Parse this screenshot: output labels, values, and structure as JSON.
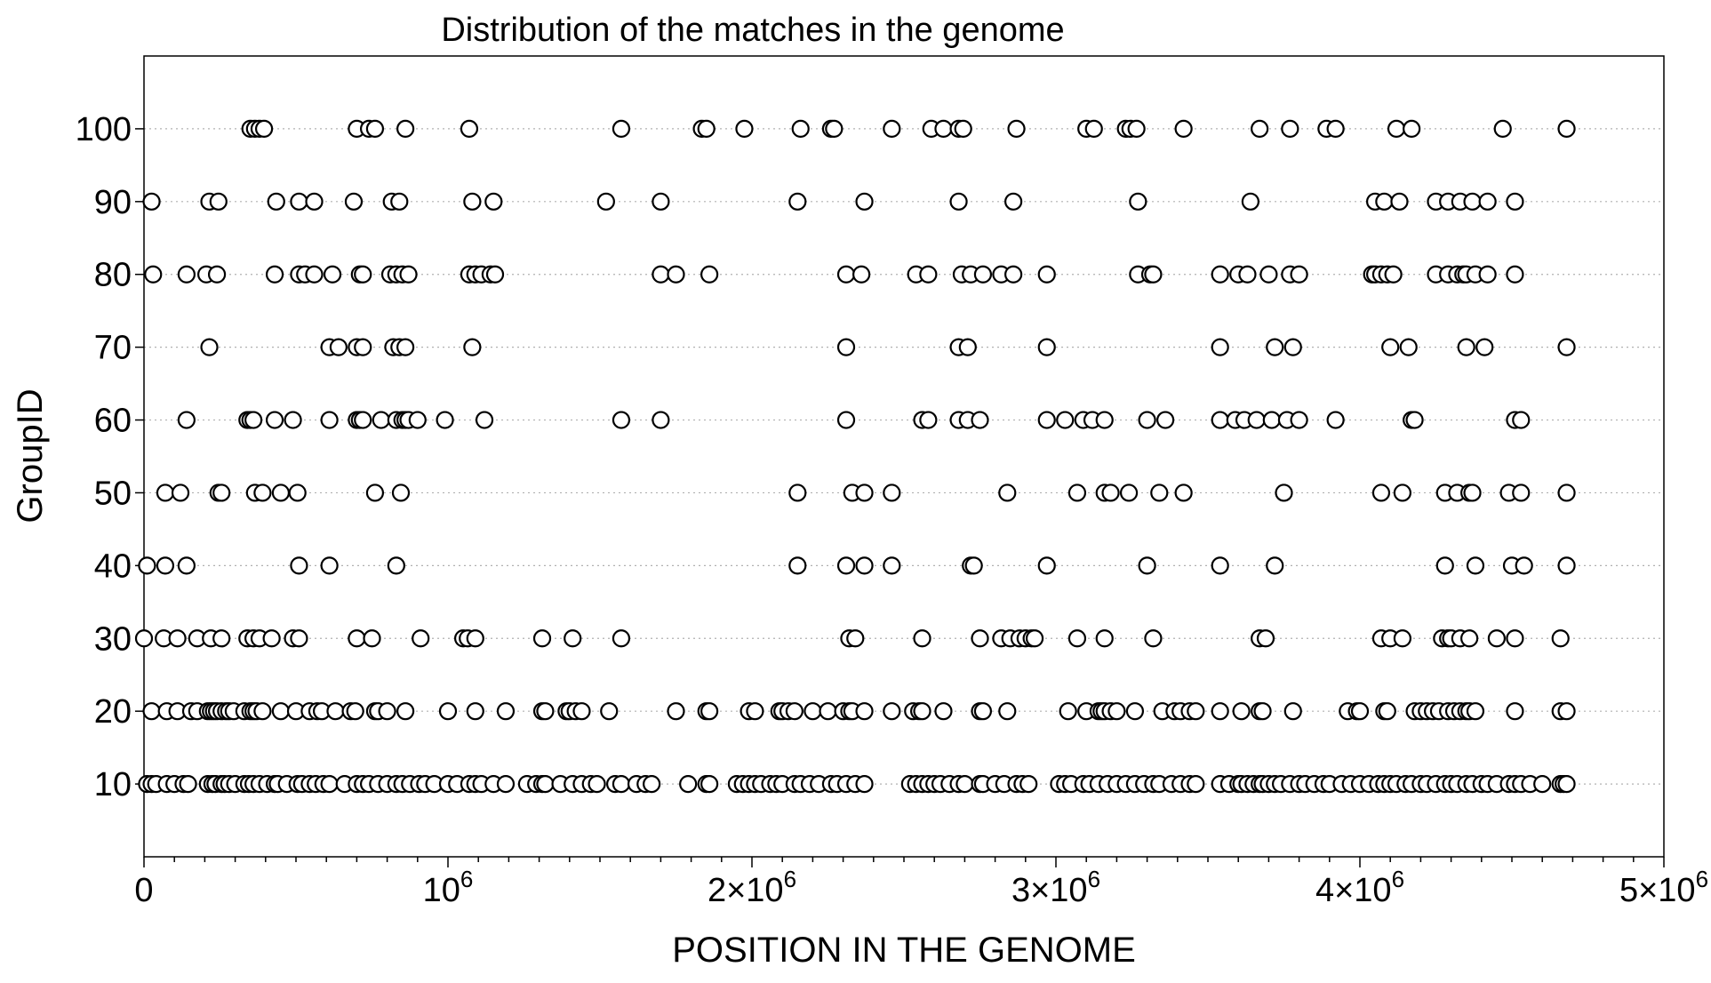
{
  "chart_data": {
    "type": "scatter",
    "title": "Distribution of the matches in the genome",
    "xlabel": "POSITION IN THE GENOME",
    "ylabel": "GroupID",
    "xlim": [
      0,
      5000000
    ],
    "ylim": [
      0,
      110
    ],
    "grid": "horizontal dotted at each y tick",
    "legend": "none",
    "marker": "open circle",
    "x_ticks": [
      {
        "value": 0,
        "base": "0",
        "sup": ""
      },
      {
        "value": 1000000,
        "base": "10",
        "sup": "6"
      },
      {
        "value": 2000000,
        "base": "2×10",
        "sup": "6"
      },
      {
        "value": 3000000,
        "base": "3×10",
        "sup": "6"
      },
      {
        "value": 4000000,
        "base": "4×10",
        "sup": "6"
      },
      {
        "value": 5000000,
        "base": "5×10",
        "sup": "6"
      }
    ],
    "y_ticks": [
      10,
      20,
      30,
      40,
      50,
      60,
      70,
      80,
      90,
      100
    ],
    "series": [
      {
        "y": 100,
        "x": [
          350000,
          365000,
          380000,
          395000,
          700000,
          740000,
          760000,
          860000,
          1070000,
          1570000,
          1835000,
          1850000,
          1975000,
          2160000,
          2260000,
          2270000,
          2460000,
          2590000,
          2630000,
          2680000,
          2695000,
          2870000,
          3100000,
          3125000,
          3230000,
          3245000,
          3265000,
          3420000,
          3670000,
          3770000,
          3890000,
          3920000,
          4120000,
          4170000,
          4470000,
          4680000
        ]
      },
      {
        "y": 90,
        "x": [
          25000,
          215000,
          245000,
          435000,
          510000,
          560000,
          690000,
          815000,
          840000,
          1080000,
          1150000,
          1520000,
          1700000,
          2150000,
          2370000,
          2680000,
          2860000,
          3270000,
          3640000,
          4050000,
          4080000,
          4130000,
          4250000,
          4290000,
          4330000,
          4370000,
          4420000,
          4510000
        ]
      },
      {
        "y": 80,
        "x": [
          30000,
          140000,
          205000,
          240000,
          430000,
          510000,
          530000,
          560000,
          620000,
          710000,
          720000,
          810000,
          830000,
          850000,
          870000,
          1070000,
          1090000,
          1110000,
          1140000,
          1155000,
          1700000,
          1750000,
          1860000,
          2310000,
          2360000,
          2540000,
          2580000,
          2690000,
          2720000,
          2760000,
          2820000,
          2860000,
          2970000,
          3270000,
          3310000,
          3320000,
          3540000,
          3600000,
          3630000,
          3700000,
          3770000,
          3800000,
          4040000,
          4050000,
          4070000,
          4090000,
          4110000,
          4250000,
          4290000,
          4320000,
          4340000,
          4350000,
          4380000,
          4420000,
          4510000
        ]
      },
      {
        "y": 70,
        "x": [
          215000,
          610000,
          640000,
          700000,
          720000,
          820000,
          840000,
          860000,
          1080000,
          2310000,
          2680000,
          2710000,
          2970000,
          3540000,
          3720000,
          3780000,
          4100000,
          4160000,
          4350000,
          4410000,
          4680000
        ]
      },
      {
        "y": 60,
        "x": [
          140000,
          340000,
          350000,
          360000,
          430000,
          490000,
          610000,
          700000,
          710000,
          720000,
          780000,
          830000,
          850000,
          860000,
          870000,
          900000,
          990000,
          1120000,
          1570000,
          1700000,
          2310000,
          2560000,
          2580000,
          2680000,
          2710000,
          2750000,
          2970000,
          3030000,
          3090000,
          3120000,
          3160000,
          3300000,
          3360000,
          3540000,
          3590000,
          3620000,
          3660000,
          3710000,
          3760000,
          3800000,
          3920000,
          4170000,
          4180000,
          4510000,
          4530000
        ]
      },
      {
        "y": 50,
        "x": [
          70000,
          120000,
          245000,
          255000,
          365000,
          390000,
          450000,
          505000,
          760000,
          845000,
          2150000,
          2330000,
          2370000,
          2460000,
          2840000,
          3070000,
          3160000,
          3180000,
          3240000,
          3340000,
          3420000,
          3750000,
          4070000,
          4140000,
          4280000,
          4320000,
          4360000,
          4370000,
          4490000,
          4530000,
          4680000
        ]
      },
      {
        "y": 40,
        "x": [
          10000,
          70000,
          140000,
          510000,
          610000,
          830000,
          2150000,
          2310000,
          2370000,
          2460000,
          2720000,
          2730000,
          2970000,
          3300000,
          3540000,
          3720000,
          4280000,
          4380000,
          4500000,
          4540000,
          4680000
        ]
      },
      {
        "y": 30,
        "x": [
          0,
          65000,
          110000,
          175000,
          220000,
          255000,
          340000,
          360000,
          380000,
          420000,
          490000,
          510000,
          700000,
          750000,
          910000,
          1050000,
          1065000,
          1090000,
          1310000,
          1410000,
          1570000,
          2320000,
          2340000,
          2560000,
          2750000,
          2820000,
          2850000,
          2880000,
          2900000,
          2920000,
          2930000,
          3070000,
          3160000,
          3320000,
          3670000,
          3690000,
          4070000,
          4100000,
          4140000,
          4270000,
          4290000,
          4300000,
          4330000,
          4360000,
          4450000,
          4510000,
          4660000
        ]
      },
      {
        "y": 20,
        "x": [
          25000,
          75000,
          110000,
          155000,
          175000,
          210000,
          220000,
          230000,
          240000,
          255000,
          270000,
          280000,
          295000,
          330000,
          350000,
          360000,
          370000,
          390000,
          450000,
          500000,
          545000,
          570000,
          585000,
          630000,
          680000,
          695000,
          760000,
          770000,
          800000,
          860000,
          1000000,
          1090000,
          1190000,
          1310000,
          1320000,
          1390000,
          1400000,
          1420000,
          1440000,
          1530000,
          1750000,
          1850000,
          1860000,
          1990000,
          2010000,
          2090000,
          2100000,
          2120000,
          2140000,
          2200000,
          2250000,
          2300000,
          2320000,
          2330000,
          2370000,
          2460000,
          2530000,
          2550000,
          2560000,
          2630000,
          2750000,
          2760000,
          2840000,
          3040000,
          3100000,
          3140000,
          3150000,
          3160000,
          3180000,
          3200000,
          3260000,
          3350000,
          3390000,
          3410000,
          3440000,
          3460000,
          3540000,
          3610000,
          3670000,
          3680000,
          3780000,
          3960000,
          3990000,
          4000000,
          4080000,
          4090000,
          4180000,
          4200000,
          4220000,
          4240000,
          4260000,
          4290000,
          4310000,
          4330000,
          4350000,
          4360000,
          4380000,
          4510000,
          4660000,
          4680000
        ]
      },
      {
        "y": 10,
        "x": [
          10000,
          25000,
          40000,
          75000,
          100000,
          130000,
          145000,
          210000,
          225000,
          235000,
          255000,
          265000,
          280000,
          300000,
          330000,
          345000,
          360000,
          380000,
          405000,
          430000,
          440000,
          470000,
          505000,
          520000,
          545000,
          565000,
          590000,
          610000,
          660000,
          700000,
          720000,
          740000,
          770000,
          800000,
          830000,
          850000,
          875000,
          905000,
          925000,
          955000,
          1000000,
          1030000,
          1070000,
          1090000,
          1110000,
          1150000,
          1190000,
          1260000,
          1290000,
          1310000,
          1320000,
          1370000,
          1410000,
          1440000,
          1470000,
          1490000,
          1550000,
          1570000,
          1620000,
          1650000,
          1670000,
          1790000,
          1850000,
          1860000,
          1950000,
          1970000,
          1990000,
          2010000,
          2030000,
          2060000,
          2080000,
          2100000,
          2140000,
          2160000,
          2190000,
          2220000,
          2260000,
          2280000,
          2310000,
          2340000,
          2370000,
          2520000,
          2540000,
          2560000,
          2580000,
          2600000,
          2620000,
          2650000,
          2680000,
          2700000,
          2750000,
          2760000,
          2800000,
          2830000,
          2870000,
          2890000,
          2910000,
          3010000,
          3030000,
          3050000,
          3090000,
          3110000,
          3140000,
          3170000,
          3200000,
          3230000,
          3260000,
          3290000,
          3320000,
          3340000,
          3380000,
          3410000,
          3440000,
          3460000,
          3540000,
          3570000,
          3600000,
          3610000,
          3630000,
          3650000,
          3670000,
          3680000,
          3700000,
          3720000,
          3740000,
          3770000,
          3800000,
          3820000,
          3850000,
          3880000,
          3900000,
          3940000,
          3970000,
          4000000,
          4030000,
          4060000,
          4080000,
          4100000,
          4120000,
          4150000,
          4170000,
          4200000,
          4220000,
          4250000,
          4280000,
          4300000,
          4320000,
          4350000,
          4370000,
          4400000,
          4420000,
          4450000,
          4490000,
          4510000,
          4530000,
          4560000,
          4600000,
          4660000,
          4670000,
          4680000
        ]
      }
    ]
  }
}
